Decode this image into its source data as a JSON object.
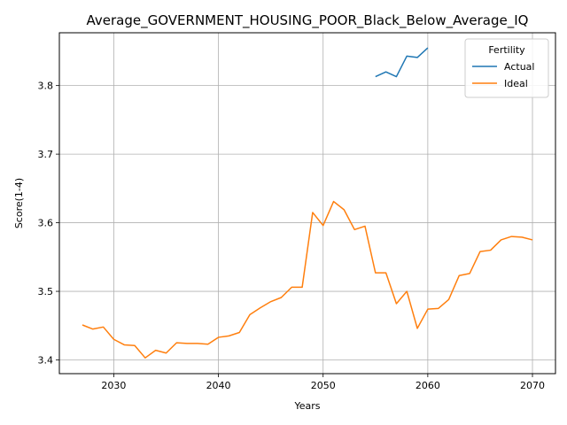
{
  "chart_data": {
    "type": "line",
    "title": "Average_GOVERNMENT_HOUSING_POOR_Black_Below_Average_IQ",
    "xlabel": "Years",
    "ylabel": "Score(1-4)",
    "xlim": [
      2024.8,
      2072.2
    ],
    "ylim": [
      3.38,
      3.877
    ],
    "xticks": [
      2030,
      2040,
      2050,
      2060,
      2070
    ],
    "yticks": [
      3.4,
      3.5,
      3.6,
      3.7,
      3.8
    ],
    "grid": true,
    "legend": {
      "title": "Fertility",
      "placement": "top-right"
    },
    "series": [
      {
        "name": "Actual",
        "color": "#1f77b4",
        "x": [
          2055,
          2056,
          2057,
          2058,
          2059,
          2060
        ],
        "y": [
          3.813,
          3.82,
          3.813,
          3.843,
          3.841,
          3.855
        ]
      },
      {
        "name": "Ideal",
        "color": "#ff7f0e",
        "x": [
          2027,
          2028,
          2029,
          2030,
          2031,
          2032,
          2033,
          2034,
          2035,
          2036,
          2037,
          2038,
          2039,
          2040,
          2041,
          2042,
          2043,
          2044,
          2045,
          2046,
          2047,
          2048,
          2049,
          2050,
          2051,
          2052,
          2053,
          2054,
          2055,
          2056,
          2057,
          2058,
          2059,
          2060,
          2061,
          2062,
          2063,
          2064,
          2065,
          2066,
          2067,
          2068,
          2069,
          2070
        ],
        "y": [
          3.451,
          3.445,
          3.448,
          3.43,
          3.422,
          3.421,
          3.403,
          3.414,
          3.41,
          3.425,
          3.424,
          3.424,
          3.423,
          3.433,
          3.435,
          3.44,
          3.466,
          3.476,
          3.485,
          3.491,
          3.506,
          3.506,
          3.615,
          3.596,
          3.631,
          3.619,
          3.59,
          3.595,
          3.527,
          3.527,
          3.482,
          3.5,
          3.446,
          3.474,
          3.475,
          3.488,
          3.523,
          3.526,
          3.558,
          3.56,
          3.575,
          3.58,
          3.579,
          3.575
        ]
      }
    ]
  }
}
